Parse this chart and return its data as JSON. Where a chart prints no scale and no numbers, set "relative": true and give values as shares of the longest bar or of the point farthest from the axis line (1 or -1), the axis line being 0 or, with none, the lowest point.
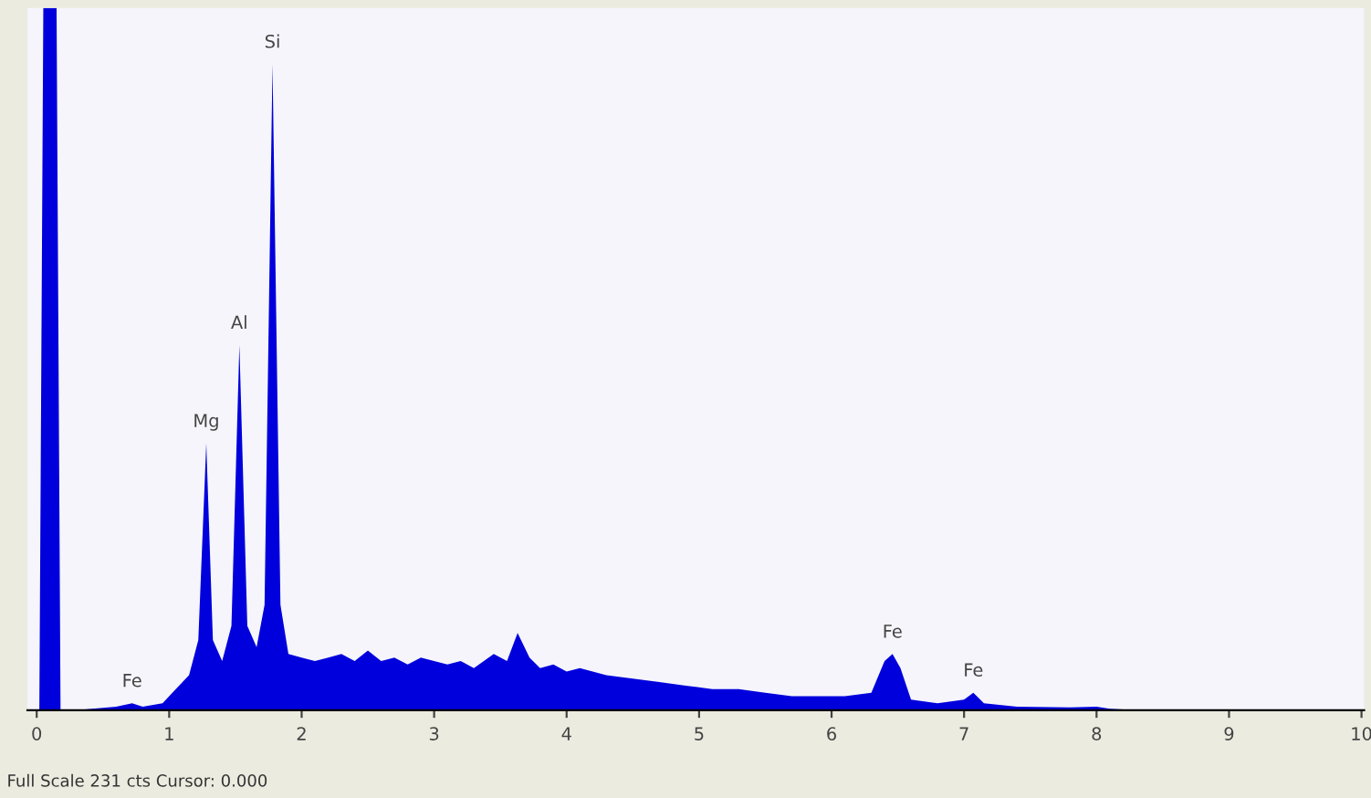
{
  "chart_data": {
    "type": "area",
    "relative": true,
    "color": "#0000dd",
    "x": [
      0,
      0.02,
      0.05,
      0.15,
      0.18,
      0.3,
      0.6,
      0.72,
      0.8,
      0.95,
      1.05,
      1.15,
      1.22,
      1.28,
      1.33,
      1.4,
      1.47,
      1.53,
      1.59,
      1.66,
      1.72,
      1.78,
      1.84,
      1.9,
      2.0,
      2.1,
      2.2,
      2.3,
      2.4,
      2.5,
      2.6,
      2.7,
      2.8,
      2.9,
      3.0,
      3.1,
      3.2,
      3.3,
      3.45,
      3.55,
      3.63,
      3.72,
      3.8,
      3.9,
      4.0,
      4.1,
      4.3,
      4.5,
      4.7,
      4.9,
      5.1,
      5.3,
      5.5,
      5.7,
      5.9,
      6.1,
      6.3,
      6.4,
      6.46,
      6.52,
      6.6,
      6.8,
      7.0,
      7.07,
      7.15,
      7.4,
      7.8,
      8.0,
      8.1,
      8.3,
      10
    ],
    "values": [
      0,
      0,
      1,
      1,
      0,
      0,
      0.005,
      0.01,
      0.005,
      0.01,
      0.03,
      0.05,
      0.1,
      0.38,
      0.1,
      0.07,
      0.12,
      0.52,
      0.12,
      0.09,
      0.15,
      0.92,
      0.15,
      0.08,
      0.075,
      0.07,
      0.075,
      0.08,
      0.07,
      0.085,
      0.07,
      0.075,
      0.065,
      0.075,
      0.07,
      0.065,
      0.07,
      0.06,
      0.08,
      0.07,
      0.11,
      0.075,
      0.06,
      0.065,
      0.055,
      0.06,
      0.05,
      0.045,
      0.04,
      0.035,
      0.03,
      0.03,
      0.025,
      0.02,
      0.02,
      0.02,
      0.025,
      0.07,
      0.08,
      0.06,
      0.015,
      0.01,
      0.015,
      0.025,
      0.01,
      0.005,
      0.004,
      0.005,
      0.002,
      0,
      0
    ],
    "xlim": [
      -0.07,
      10.02
    ],
    "xticks": [
      0,
      1,
      2,
      3,
      4,
      5,
      6,
      7,
      8,
      9,
      10
    ],
    "annotations": [
      {
        "text": "Fe",
        "x": 0.72,
        "y": 0.01
      },
      {
        "text": "Mg",
        "x": 1.28,
        "y": 0.38
      },
      {
        "text": "Al",
        "x": 1.53,
        "y": 0.52
      },
      {
        "text": "Si",
        "x": 1.78,
        "y": 0.92
      },
      {
        "text": "Fe",
        "x": 6.46,
        "y": 0.08
      },
      {
        "text": "Fe",
        "x": 7.07,
        "y": 0.025
      },
      "Full Scale 231 cts Cursor: 0.000"
    ]
  }
}
